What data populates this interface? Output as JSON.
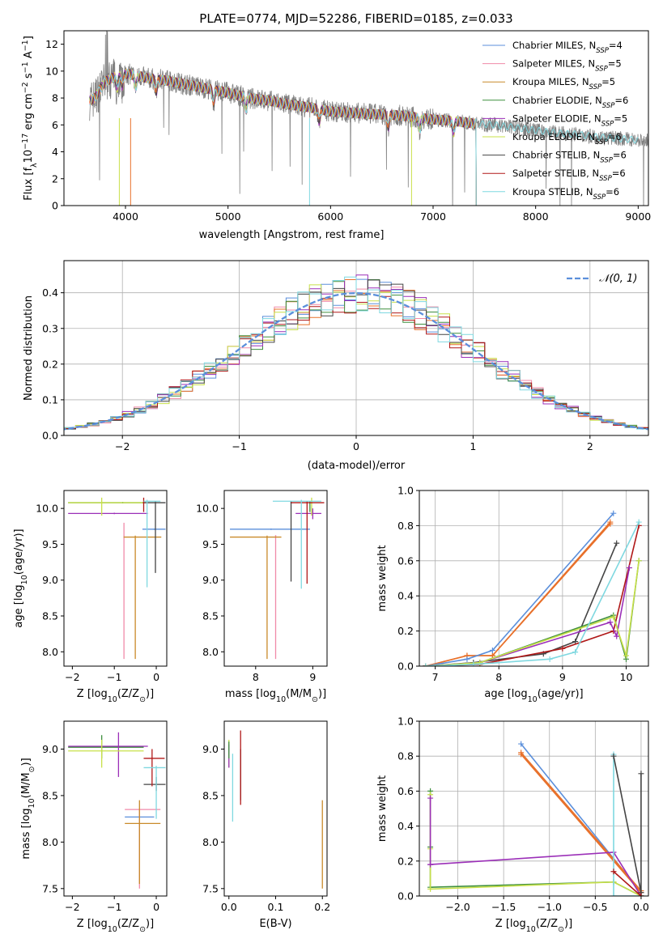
{
  "title": "PLATE=0774, MJD=52286, FIBERID=0185, z=0.033",
  "colors": {
    "Chabrier MILES": "#5b8fdb",
    "Salpeter MILES": "#f08aa8",
    "Kroupa MILES": "#c98a2a",
    "Chabrier ELODIE": "#3f8f3f",
    "Salpeter ELODIE": "#9b2fb8",
    "Kroupa ELODIE": "#c8e04a",
    "Chabrier STELIB": "#444444",
    "Salpeter STELIB": "#b01818",
    "Kroupa STELIB": "#7fd8e0",
    "data": "#808080",
    "orange": "#e8702a",
    "gauss": "#5b8fdb"
  },
  "chart_data": [
    {
      "name": "spectrum",
      "type": "line",
      "xlabel": "wavelength [Angstrom, rest frame]",
      "ylabel_parts": [
        "Flux [f",
        "λ",
        "10",
        "−17",
        " erg cm",
        "−2",
        " s",
        "−1",
        " A",
        "−1",
        "]"
      ],
      "xlim": [
        3400,
        9100
      ],
      "ylim": [
        0,
        13
      ],
      "xticks": [
        4000,
        5000,
        6000,
        7000,
        8000,
        9000
      ],
      "yticks": [
        0,
        2,
        4,
        6,
        8,
        10,
        12
      ],
      "legend_position": "top-right",
      "legend": [
        {
          "name": "Chabrier MILES",
          "n": "4"
        },
        {
          "name": "Salpeter MILES",
          "n": "5"
        },
        {
          "name": "Kroupa MILES",
          "n": "5"
        },
        {
          "name": "Chabrier ELODIE",
          "n": "6"
        },
        {
          "name": "Salpeter ELODIE",
          "n": "5"
        },
        {
          "name": "Kroupa ELODIE",
          "n": "6"
        },
        {
          "name": "Chabrier STELIB",
          "n": "6"
        },
        {
          "name": "Salpeter STELIB",
          "n": "6"
        },
        {
          "name": "Kroupa STELIB",
          "n": "6"
        }
      ],
      "legend_n_label": "N",
      "legend_n_sub": "SSP",
      "continuum": {
        "x": [
          3650,
          3700,
          3800,
          3900,
          4000,
          4100,
          4200,
          4400,
          4600,
          4800,
          5000,
          5200,
          5400,
          5600,
          5800,
          6000,
          6200,
          6400,
          6600,
          6800,
          7000,
          7200,
          7400,
          7600,
          7800,
          8000,
          8200,
          8400,
          8600,
          8800,
          9100
        ],
        "y": [
          7.8,
          8.0,
          9.2,
          9.6,
          9.8,
          9.7,
          9.5,
          9.3,
          9.0,
          8.7,
          8.4,
          8.0,
          7.8,
          7.5,
          7.3,
          7.0,
          6.9,
          6.8,
          6.75,
          6.6,
          6.4,
          6.3,
          6.1,
          6.0,
          5.8,
          5.6,
          5.4,
          5.3,
          5.1,
          5.0,
          4.8
        ]
      },
      "data_range": [
        3650,
        9100
      ],
      "model_range": [
        3650,
        7420
      ],
      "dips": [
        3920,
        3970,
        4100,
        4300,
        4860,
        5175,
        5890,
        6563,
        6870,
        7200
      ]
    },
    {
      "name": "residuals",
      "type": "step",
      "xlabel": "(data-model)/error",
      "ylabel": "Normed distribution",
      "xlim": [
        -2.5,
        2.5
      ],
      "ylim": [
        0,
        0.49
      ],
      "xticks": [
        -2,
        -1,
        0,
        1,
        2
      ],
      "yticks": [
        0.0,
        0.1,
        0.2,
        0.3,
        0.4
      ],
      "grid": true,
      "legend_position": "top-right",
      "legend_label": "𝒩(0, 1)",
      "bin_width": 0.1
    },
    {
      "name": "age-Z",
      "type": "errorbar",
      "xlabel_parts": [
        "Z [log",
        "10",
        "(Z/Z",
        "⊙",
        ")]"
      ],
      "ylabel_parts": [
        "age  [log",
        "10",
        "(age/yr)]"
      ],
      "xlim": [
        -2.2,
        0.25
      ],
      "ylim": [
        7.8,
        10.25
      ],
      "xticks": [
        -2,
        -1,
        0
      ],
      "yticks": [
        8.0,
        8.5,
        9.0,
        9.5,
        10.0
      ],
      "items": [
        {
          "m": "Chabrier MILES",
          "x": -0.05,
          "xlo": -0.33,
          "xhi": 0.22,
          "y": 9.71,
          "ylo": 9.7,
          "yhi": 9.72
        },
        {
          "m": "Salpeter MILES",
          "x": -0.77,
          "xlo": -0.78,
          "xhi": -0.76,
          "y": 9.62,
          "ylo": 7.9,
          "yhi": 9.8
        },
        {
          "m": "Kroupa MILES",
          "x": -0.5,
          "xlo": -0.78,
          "xhi": 0.12,
          "y": 9.6,
          "ylo": 7.9,
          "yhi": 9.62
        },
        {
          "m": "Chabrier ELODIE",
          "x": -0.8,
          "xlo": -2.1,
          "xhi": -0.3,
          "y": 10.08,
          "ylo": 10.07,
          "yhi": 10.09
        },
        {
          "m": "Salpeter ELODIE",
          "x": -1.0,
          "xlo": -2.1,
          "xhi": -0.2,
          "y": 9.93,
          "ylo": 9.92,
          "yhi": 9.94
        },
        {
          "m": "Kroupa ELODIE",
          "x": -1.3,
          "xlo": -2.1,
          "xhi": -0.3,
          "y": 10.08,
          "ylo": 9.9,
          "yhi": 10.15
        },
        {
          "m": "Chabrier STELIB",
          "x": -0.02,
          "xlo": -0.3,
          "xhi": 0.22,
          "y": 10.08,
          "ylo": 9.1,
          "yhi": 10.1
        },
        {
          "m": "Salpeter STELIB",
          "x": -0.3,
          "xlo": -0.32,
          "xhi": -0.28,
          "y": 10.08,
          "ylo": 9.95,
          "yhi": 10.15
        },
        {
          "m": "Kroupa STELIB",
          "x": -0.22,
          "xlo": -0.3,
          "xhi": 0.1,
          "y": 10.1,
          "ylo": 8.9,
          "yhi": 10.12
        }
      ]
    },
    {
      "name": "age-mass",
      "type": "errorbar",
      "xlabel_parts": [
        "mass [log",
        "10",
        "(M/M",
        "⊙",
        ")]"
      ],
      "xlim": [
        7.45,
        9.25
      ],
      "ylim": [
        7.8,
        10.25
      ],
      "xticks": [
        8,
        9
      ],
      "yticks": [
        8.0,
        8.5,
        9.0,
        9.5,
        10.0
      ],
      "items": [
        {
          "m": "Chabrier MILES",
          "x": 8.27,
          "xlo": 7.55,
          "xhi": 8.95,
          "y": 9.71,
          "ylo": 9.7,
          "yhi": 9.72
        },
        {
          "m": "Salpeter MILES",
          "x": 8.35,
          "xlo": 8.34,
          "xhi": 8.36,
          "y": 9.62,
          "ylo": 7.9,
          "yhi": 9.62
        },
        {
          "m": "Kroupa MILES",
          "x": 8.2,
          "xlo": 7.55,
          "xhi": 8.45,
          "y": 9.6,
          "ylo": 7.9,
          "yhi": 9.62
        },
        {
          "m": "Chabrier ELODIE",
          "x": 8.95,
          "xlo": 8.94,
          "xhi": 8.96,
          "y": 10.08,
          "ylo": 9.95,
          "yhi": 10.1
        },
        {
          "m": "Salpeter ELODIE",
          "x": 9.0,
          "xlo": 8.7,
          "xhi": 9.15,
          "y": 9.93,
          "ylo": 9.85,
          "yhi": 10.0
        },
        {
          "m": "Kroupa ELODIE",
          "x": 8.98,
          "xlo": 8.97,
          "xhi": 8.99,
          "y": 10.08,
          "ylo": 9.9,
          "yhi": 10.15
        },
        {
          "m": "Chabrier STELIB",
          "x": 8.62,
          "xlo": 8.61,
          "xhi": 8.63,
          "y": 10.08,
          "ylo": 8.98,
          "yhi": 10.1
        },
        {
          "m": "Salpeter STELIB",
          "x": 8.9,
          "xlo": 8.62,
          "xhi": 9.2,
          "y": 10.08,
          "ylo": 8.95,
          "yhi": 10.1
        },
        {
          "m": "Kroupa STELIB",
          "x": 8.8,
          "xlo": 8.3,
          "xhi": 9.15,
          "y": 10.1,
          "ylo": 8.88,
          "yhi": 10.12
        }
      ]
    },
    {
      "name": "weight-age",
      "type": "line",
      "xlabel_parts": [
        "age  [log",
        "10",
        "(age/yr)]"
      ],
      "ylabel": "mass weight",
      "xlim": [
        6.75,
        10.35
      ],
      "ylim": [
        0,
        1.0
      ],
      "xticks": [
        7,
        8,
        9,
        10
      ],
      "yticks": [
        0.0,
        0.2,
        0.4,
        0.6,
        0.8,
        1.0
      ],
      "grid": true,
      "series": [
        {
          "m": "Salpeter MILES",
          "x": [
            6.85,
            7.5,
            7.9,
            9.75
          ],
          "y": [
            0.0,
            0.06,
            0.06,
            0.81
          ]
        },
        {
          "m": "Kroupa MILES",
          "x": [
            6.85,
            7.5,
            7.9,
            9.75
          ],
          "y": [
            0.0,
            0.06,
            0.06,
            0.82
          ]
        },
        {
          "m": "Chabrier MILES",
          "x": [
            6.85,
            7.5,
            7.9,
            9.8
          ],
          "y": [
            0.0,
            0.04,
            0.09,
            0.87
          ]
        },
        {
          "m": "Chabrier STELIB",
          "x": [
            6.85,
            7.6,
            8.7,
            9.2,
            9.85
          ],
          "y": [
            0.0,
            0.02,
            0.07,
            0.14,
            0.7
          ]
        },
        {
          "m": "Salpeter STELIB",
          "x": [
            6.85,
            7.7,
            9.0,
            9.8,
            10.2
          ],
          "y": [
            0.0,
            0.01,
            0.1,
            0.2,
            0.8
          ]
        },
        {
          "m": "Chabrier ELODIE",
          "x": [
            6.85,
            7.7,
            9.8,
            10.0,
            10.2
          ],
          "y": [
            0.0,
            0.02,
            0.29,
            0.04,
            0.6
          ]
        },
        {
          "m": "Salpeter ELODIE",
          "x": [
            6.85,
            7.7,
            9.75,
            9.85,
            10.05
          ],
          "y": [
            0.0,
            0.02,
            0.25,
            0.17,
            0.56
          ]
        },
        {
          "m": "Kroupa ELODIE",
          "x": [
            6.85,
            7.7,
            9.8,
            10.0,
            10.2
          ],
          "y": [
            0.0,
            0.02,
            0.28,
            0.06,
            0.6
          ]
        },
        {
          "m": "Kroupa STELIB",
          "x": [
            6.85,
            7.6,
            8.8,
            9.2,
            10.2
          ],
          "y": [
            0.0,
            0.01,
            0.04,
            0.08,
            0.82
          ]
        }
      ]
    },
    {
      "name": "mass-Z",
      "type": "errorbar",
      "xlabel_parts": [
        "Z [log",
        "10",
        "(Z/Z",
        "⊙",
        ")]"
      ],
      "ylabel_parts": [
        "mass [log",
        "10",
        "(M/M",
        "⊙",
        ")]"
      ],
      "xlim": [
        -2.2,
        0.25
      ],
      "ylim": [
        7.42,
        9.3
      ],
      "xticks": [
        -2,
        -1,
        0
      ],
      "yticks": [
        7.5,
        8.0,
        8.5,
        9.0
      ],
      "items": [
        {
          "m": "Chabrier MILES",
          "x": -0.4,
          "xlo": -0.75,
          "xhi": -0.05,
          "y": 8.27,
          "ylo": 8.26,
          "yhi": 8.28
        },
        {
          "m": "Salpeter MILES",
          "x": -0.4,
          "xlo": -0.75,
          "xhi": 0.1,
          "y": 8.35,
          "ylo": 7.5,
          "yhi": 8.36
        },
        {
          "m": "Kroupa MILES",
          "x": -0.4,
          "xlo": -0.75,
          "xhi": 0.1,
          "y": 8.2,
          "ylo": 7.55,
          "yhi": 8.45
        },
        {
          "m": "Chabrier ELODIE",
          "x": -1.3,
          "xlo": -2.1,
          "xhi": -0.3,
          "y": 9.02,
          "ylo": 8.9,
          "yhi": 9.15
        },
        {
          "m": "Salpeter ELODIE",
          "x": -0.9,
          "xlo": -2.1,
          "xhi": -0.2,
          "y": 9.03,
          "ylo": 8.7,
          "yhi": 9.18
        },
        {
          "m": "Kroupa ELODIE",
          "x": -1.3,
          "xlo": -2.1,
          "xhi": -0.3,
          "y": 8.98,
          "ylo": 8.8,
          "yhi": 9.1
        },
        {
          "m": "Chabrier STELIB",
          "x": 0.0,
          "xlo": -0.3,
          "xhi": 0.22,
          "y": 8.62,
          "ylo": 8.55,
          "yhi": 8.7
        },
        {
          "m": "Salpeter STELIB",
          "x": -0.1,
          "xlo": -0.3,
          "xhi": 0.2,
          "y": 8.9,
          "ylo": 8.6,
          "yhi": 9.0
        },
        {
          "m": "Kroupa STELIB",
          "x": 0.0,
          "xlo": -0.3,
          "xhi": 0.22,
          "y": 8.8,
          "ylo": 8.25,
          "yhi": 8.82
        }
      ]
    },
    {
      "name": "mass-EBV",
      "type": "errorbar",
      "xlabel": "E(B-V)",
      "xlim": [
        -0.01,
        0.21
      ],
      "ylim": [
        7.42,
        9.3
      ],
      "xticks": [
        0.0,
        0.1,
        0.2
      ],
      "yticks": [
        7.5,
        8.0,
        8.5,
        9.0
      ],
      "items": [
        {
          "m": "Kroupa ELODIE",
          "x": 0.0,
          "xlo": 0.0,
          "xhi": 0.0,
          "y": 9.0,
          "ylo": 8.8,
          "yhi": 9.1
        },
        {
          "m": "Salpeter ELODIE",
          "x": 0.0,
          "xlo": 0.0,
          "xhi": 0.0,
          "y": 8.95,
          "ylo": 8.8,
          "yhi": 9.05
        },
        {
          "m": "Kroupa STELIB",
          "x": 0.008,
          "xlo": 0.008,
          "xhi": 0.008,
          "y": 8.6,
          "ylo": 8.22,
          "yhi": 8.95
        },
        {
          "m": "Chabrier STELIB",
          "x": 0.025,
          "xlo": 0.025,
          "xhi": 0.025,
          "y": 8.7,
          "ylo": 8.45,
          "yhi": 9.0
        },
        {
          "m": "Salpeter STELIB",
          "x": 0.025,
          "xlo": 0.025,
          "xhi": 0.025,
          "y": 8.8,
          "ylo": 8.4,
          "yhi": 9.2
        },
        {
          "m": "Kroupa MILES",
          "x": 0.2,
          "xlo": 0.2,
          "xhi": 0.2,
          "y": 8.0,
          "ylo": 7.5,
          "yhi": 8.45
        },
        {
          "m": "Chabrier ELODIE",
          "x": 0.0,
          "xlo": 0.0,
          "xhi": 0.0,
          "y": 9.0,
          "ylo": 8.9,
          "yhi": 9.08
        }
      ]
    },
    {
      "name": "weight-Z",
      "type": "line",
      "xlabel_parts": [
        "Z [log",
        "10",
        "(Z/Z",
        "⊙",
        ")]"
      ],
      "ylabel": "mass weight",
      "xlim": [
        -2.42,
        0.08
      ],
      "ylim": [
        0,
        1.0
      ],
      "xticks": [
        -2.0,
        -1.5,
        -1.0,
        -0.5,
        0.0
      ],
      "yticks": [
        0.0,
        0.2,
        0.4,
        0.6,
        0.8,
        1.0
      ],
      "grid": true,
      "series": [
        {
          "m": "Chabrier MILES",
          "x": [
            -1.31,
            0.0
          ],
          "y": [
            0.87,
            0.02
          ]
        },
        {
          "m": "Salpeter MILES",
          "x": [
            -1.31,
            0.0
          ],
          "y": [
            0.82,
            0.03
          ]
        },
        {
          "m": "Kroupa MILES",
          "x": [
            -1.31,
            0.0
          ],
          "y": [
            0.81,
            0.02
          ]
        },
        {
          "m": "Salpeter ELODIE",
          "x": [
            -2.3,
            -0.3,
            0.0
          ],
          "y": [
            0.18,
            0.25,
            0.0
          ]
        },
        {
          "m": "Chabrier ELODIE",
          "x": [
            -2.3,
            -2.3,
            -2.3,
            -0.3,
            0.0
          ],
          "y": [
            0.6,
            0.28,
            0.05,
            0.08,
            0.0
          ]
        },
        {
          "m": "Kroupa ELODIE",
          "x": [
            -2.3,
            -2.3,
            -2.3,
            -0.3,
            0.0
          ],
          "y": [
            0.58,
            0.27,
            0.04,
            0.08,
            0.0
          ]
        },
        {
          "m": "Kroupa STELIB",
          "x": [
            -0.3,
            -0.3,
            0.0
          ],
          "y": [
            0.81,
            0.0,
            0.0
          ]
        },
        {
          "m": "Chabrier STELIB",
          "x": [
            -0.3,
            0.0,
            0.0,
            0.0
          ],
          "y": [
            0.8,
            0.02,
            0.7,
            0.0
          ]
        },
        {
          "m": "Salpeter STELIB",
          "x": [
            -0.3,
            0.0
          ],
          "y": [
            0.14,
            0.0
          ]
        },
        {
          "m": "Salpeter ELODIE",
          "x": [
            -2.3,
            -2.3
          ],
          "y": [
            0.56,
            0.18
          ]
        }
      ]
    }
  ]
}
